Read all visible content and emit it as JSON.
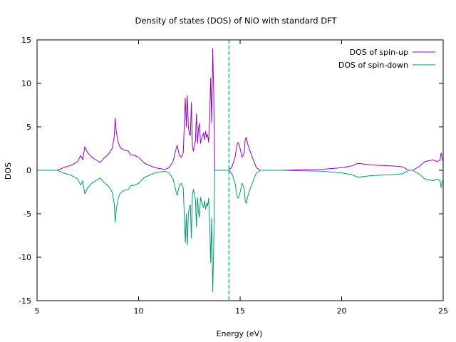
{
  "chart_data": {
    "type": "line",
    "title": "Density of states (DOS) of NiO with standard DFT",
    "xlabel": "Energy (eV)",
    "ylabel": "DOS",
    "xlim": [
      5,
      25
    ],
    "ylim": [
      -15,
      15
    ],
    "xticks": [
      5,
      10,
      15,
      20,
      25
    ],
    "yticks": [
      -15,
      -10,
      -5,
      0,
      5,
      10,
      15
    ],
    "xtick_labels": [
      "5",
      "10",
      "15",
      "20",
      "25"
    ],
    "ytick_labels": [
      "-15",
      "-10",
      "-5",
      "0",
      "5",
      "10",
      "15"
    ],
    "grid": false,
    "legend_position": "top-right",
    "fermi_level": 14.45,
    "series": [
      {
        "name": "DOS of spin-up",
        "color": "#9400d3",
        "sign": 1,
        "points": [
          [
            5.0,
            0
          ],
          [
            6.0,
            0
          ],
          [
            6.3,
            0.3
          ],
          [
            6.7,
            0.6
          ],
          [
            7.0,
            1.0
          ],
          [
            7.15,
            1.7
          ],
          [
            7.25,
            1.2
          ],
          [
            7.35,
            2.7
          ],
          [
            7.5,
            2.0
          ],
          [
            7.7,
            1.5
          ],
          [
            7.9,
            1.2
          ],
          [
            8.1,
            0.9
          ],
          [
            8.3,
            1.4
          ],
          [
            8.5,
            1.8
          ],
          [
            8.7,
            2.5
          ],
          [
            8.8,
            3.8
          ],
          [
            8.85,
            6.0
          ],
          [
            8.9,
            4.5
          ],
          [
            9.0,
            3.2
          ],
          [
            9.1,
            2.6
          ],
          [
            9.3,
            2.3
          ],
          [
            9.5,
            2.2
          ],
          [
            9.6,
            1.8
          ],
          [
            9.8,
            1.7
          ],
          [
            10.0,
            1.5
          ],
          [
            10.3,
            0.8
          ],
          [
            10.8,
            0.3
          ],
          [
            11.3,
            0.1
          ],
          [
            11.5,
            0.3
          ],
          [
            11.7,
            1.0
          ],
          [
            11.8,
            2.0
          ],
          [
            11.9,
            2.9
          ],
          [
            12.0,
            1.8
          ],
          [
            12.1,
            1.5
          ],
          [
            12.2,
            2.0
          ],
          [
            12.3,
            8.3
          ],
          [
            12.35,
            5.0
          ],
          [
            12.4,
            8.6
          ],
          [
            12.45,
            5.0
          ],
          [
            12.5,
            4.2
          ],
          [
            12.55,
            4.0
          ],
          [
            12.6,
            7.8
          ],
          [
            12.65,
            2.8
          ],
          [
            12.7,
            2.2
          ],
          [
            12.8,
            3.4
          ],
          [
            12.85,
            6.5
          ],
          [
            12.9,
            3.1
          ],
          [
            12.95,
            4.8
          ],
          [
            13.0,
            5.4
          ],
          [
            13.05,
            3.1
          ],
          [
            13.1,
            3.6
          ],
          [
            13.2,
            4.3
          ],
          [
            13.25,
            3.5
          ],
          [
            13.3,
            4.5
          ],
          [
            13.35,
            3.8
          ],
          [
            13.4,
            4.1
          ],
          [
            13.45,
            3.2
          ],
          [
            13.5,
            6.0
          ],
          [
            13.55,
            10.6
          ],
          [
            13.6,
            5.5
          ],
          [
            13.65,
            14.0
          ],
          [
            13.7,
            9.0
          ],
          [
            13.75,
            0
          ],
          [
            14.45,
            0
          ],
          [
            14.6,
            0.4
          ],
          [
            14.75,
            1.5
          ],
          [
            14.85,
            3.0
          ],
          [
            14.9,
            3.2
          ],
          [
            14.95,
            3.0
          ],
          [
            15.1,
            1.5
          ],
          [
            15.2,
            2.0
          ],
          [
            15.25,
            3.5
          ],
          [
            15.3,
            3.8
          ],
          [
            15.4,
            2.8
          ],
          [
            15.6,
            1.5
          ],
          [
            15.8,
            0.3
          ],
          [
            16.0,
            0
          ],
          [
            17.0,
            0
          ],
          [
            18.0,
            0.05
          ],
          [
            19.0,
            0.1
          ],
          [
            20.0,
            0.3
          ],
          [
            20.5,
            0.5
          ],
          [
            20.8,
            0.8
          ],
          [
            21.5,
            0.6
          ],
          [
            22.5,
            0.5
          ],
          [
            23.0,
            0.4
          ],
          [
            23.3,
            0
          ],
          [
            23.5,
            0
          ],
          [
            23.8,
            0.4
          ],
          [
            24.1,
            1.0
          ],
          [
            24.5,
            1.2
          ],
          [
            24.7,
            1.0
          ],
          [
            24.85,
            1.2
          ],
          [
            24.9,
            2.0
          ],
          [
            24.95,
            1.4
          ],
          [
            25.0,
            1.0
          ]
        ]
      },
      {
        "name": "DOS of spin-down",
        "color": "#009e73",
        "sign": -1,
        "points": [
          [
            5.0,
            0
          ],
          [
            6.0,
            0
          ],
          [
            6.3,
            0.3
          ],
          [
            6.7,
            0.6
          ],
          [
            7.0,
            1.0
          ],
          [
            7.15,
            1.7
          ],
          [
            7.25,
            1.2
          ],
          [
            7.35,
            2.7
          ],
          [
            7.5,
            2.0
          ],
          [
            7.7,
            1.5
          ],
          [
            7.9,
            1.2
          ],
          [
            8.1,
            0.9
          ],
          [
            8.3,
            1.4
          ],
          [
            8.5,
            1.8
          ],
          [
            8.7,
            2.5
          ],
          [
            8.8,
            3.8
          ],
          [
            8.85,
            6.0
          ],
          [
            8.9,
            4.5
          ],
          [
            9.0,
            3.2
          ],
          [
            9.1,
            2.6
          ],
          [
            9.3,
            2.3
          ],
          [
            9.5,
            2.2
          ],
          [
            9.6,
            1.8
          ],
          [
            9.8,
            1.7
          ],
          [
            10.0,
            1.5
          ],
          [
            10.3,
            0.8
          ],
          [
            10.8,
            0.3
          ],
          [
            11.3,
            0.1
          ],
          [
            11.5,
            0.3
          ],
          [
            11.7,
            1.0
          ],
          [
            11.8,
            2.0
          ],
          [
            11.9,
            2.9
          ],
          [
            12.0,
            1.8
          ],
          [
            12.1,
            1.5
          ],
          [
            12.2,
            2.0
          ],
          [
            12.3,
            8.3
          ],
          [
            12.35,
            5.0
          ],
          [
            12.4,
            8.6
          ],
          [
            12.45,
            5.0
          ],
          [
            12.5,
            4.2
          ],
          [
            12.55,
            4.0
          ],
          [
            12.6,
            7.8
          ],
          [
            12.65,
            2.8
          ],
          [
            12.7,
            2.2
          ],
          [
            12.8,
            3.4
          ],
          [
            12.85,
            6.5
          ],
          [
            12.9,
            3.1
          ],
          [
            12.95,
            4.8
          ],
          [
            13.0,
            5.4
          ],
          [
            13.05,
            3.1
          ],
          [
            13.1,
            3.6
          ],
          [
            13.2,
            4.3
          ],
          [
            13.25,
            3.5
          ],
          [
            13.3,
            4.5
          ],
          [
            13.35,
            3.8
          ],
          [
            13.4,
            4.1
          ],
          [
            13.45,
            3.2
          ],
          [
            13.5,
            6.0
          ],
          [
            13.55,
            10.6
          ],
          [
            13.6,
            5.5
          ],
          [
            13.65,
            14.0
          ],
          [
            13.7,
            9.0
          ],
          [
            13.75,
            0
          ],
          [
            14.45,
            0
          ],
          [
            14.6,
            0.4
          ],
          [
            14.75,
            1.5
          ],
          [
            14.85,
            3.0
          ],
          [
            14.9,
            3.2
          ],
          [
            14.95,
            3.0
          ],
          [
            15.1,
            1.5
          ],
          [
            15.2,
            2.0
          ],
          [
            15.25,
            3.5
          ],
          [
            15.3,
            3.8
          ],
          [
            15.4,
            2.8
          ],
          [
            15.6,
            1.5
          ],
          [
            15.8,
            0.3
          ],
          [
            16.0,
            0
          ],
          [
            17.0,
            0
          ],
          [
            18.0,
            0.05
          ],
          [
            19.0,
            0.1
          ],
          [
            20.0,
            0.3
          ],
          [
            20.5,
            0.5
          ],
          [
            20.8,
            0.8
          ],
          [
            21.5,
            0.6
          ],
          [
            22.5,
            0.5
          ],
          [
            23.0,
            0.4
          ],
          [
            23.3,
            0
          ],
          [
            23.5,
            0
          ],
          [
            23.8,
            0.4
          ],
          [
            24.1,
            1.0
          ],
          [
            24.5,
            1.2
          ],
          [
            24.7,
            1.0
          ],
          [
            24.85,
            1.2
          ],
          [
            24.9,
            2.0
          ],
          [
            24.95,
            1.4
          ],
          [
            25.0,
            1.0
          ]
        ]
      }
    ]
  }
}
